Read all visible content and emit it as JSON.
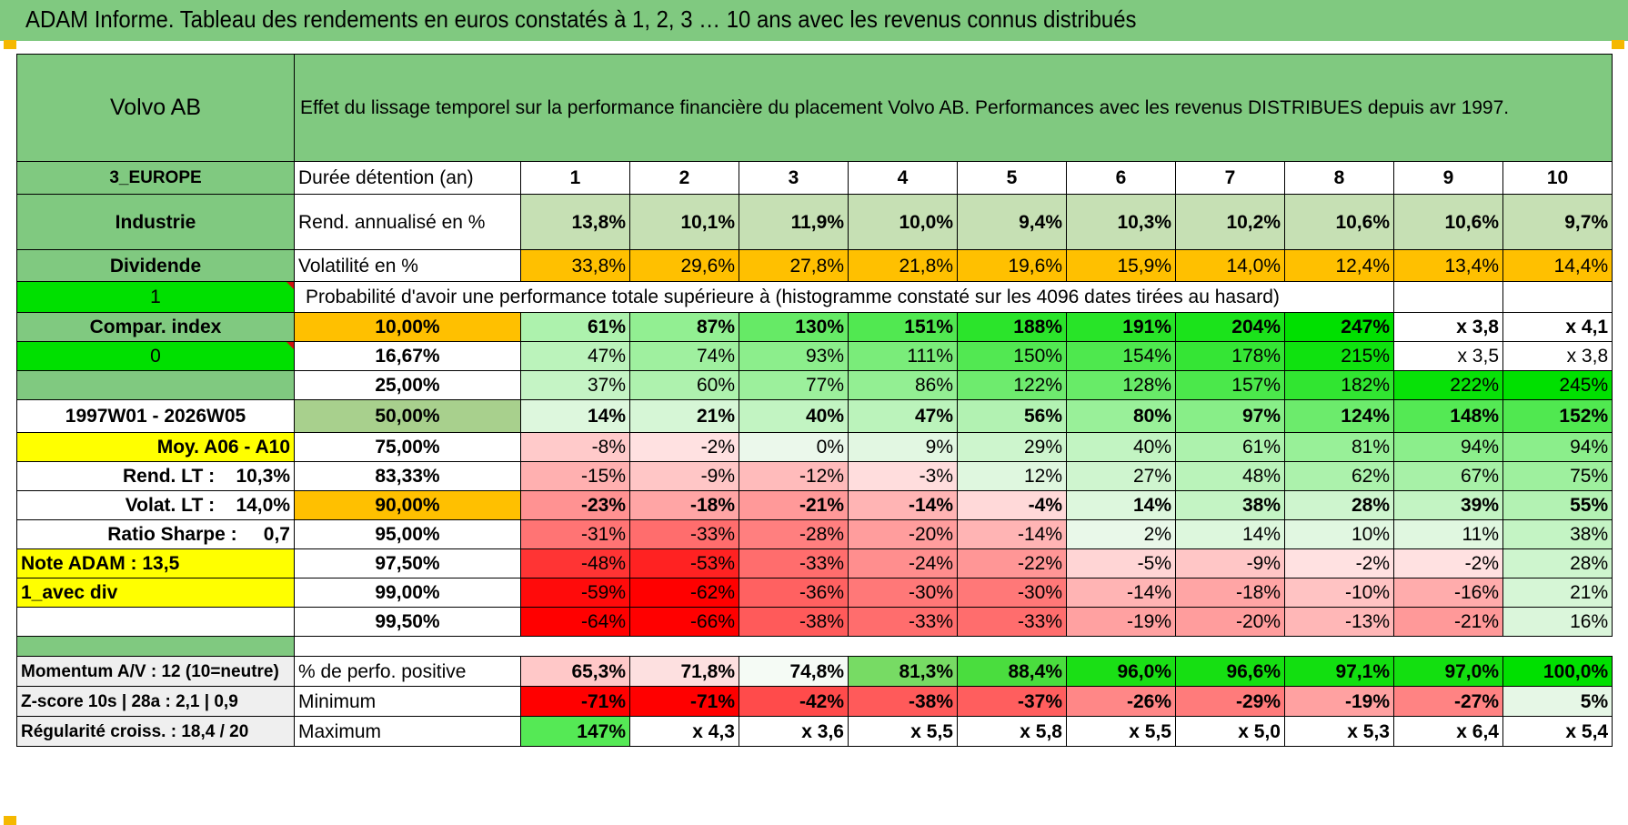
{
  "title": "ADAM Informe. Tableau des rendements en euros constatés à 1, 2, 3 … 10 ans avec les revenus connus distribués",
  "header": {
    "company": "Volvo AB",
    "description": "Effet du lissage temporel sur la performance financière du placement Volvo AB. Performances avec les revenus DISTRIBUES depuis avr 1997."
  },
  "side_labels": {
    "region": "3_EUROPE",
    "sector": "Industrie",
    "payout": "Dividende",
    "flag1": "1",
    "compar_index": "Compar. index",
    "flag0": "0",
    "period": "1997W01 - 2026W05",
    "moy": "Moy. A06 - A10",
    "rend_lt": "Rend. LT :    10,3%",
    "volat_lt": "Volat. LT :    14,0%",
    "sharpe": "Ratio Sharpe :     0,7",
    "note": "Note ADAM : 13,5",
    "variant": "1_avec div"
  },
  "summary": {
    "duration_label": "Durée détention (an)",
    "years": [
      "1",
      "2",
      "3",
      "4",
      "5",
      "6",
      "7",
      "8",
      "9",
      "10"
    ],
    "rend_label": "Rend. annualisé en %",
    "rend": [
      "13,8%",
      "10,1%",
      "11,9%",
      "10,0%",
      "9,4%",
      "10,3%",
      "10,2%",
      "10,6%",
      "10,6%",
      "9,7%"
    ],
    "vol_label": "Volatilité en %",
    "vol": [
      "33,8%",
      "29,6%",
      "27,8%",
      "21,8%",
      "19,6%",
      "15,9%",
      "14,0%",
      "12,4%",
      "13,4%",
      "14,4%"
    ]
  },
  "prob_title": "Probabilité d'avoir une performance totale supérieure à (histogramme constaté sur les 4096 dates tirées au hasard)",
  "prob_rows": [
    {
      "p": "10,00%",
      "v": [
        "61%",
        "87%",
        "130%",
        "151%",
        "188%",
        "191%",
        "204%",
        "247%",
        "x 3,8",
        "x 4,1"
      ]
    },
    {
      "p": "16,67%",
      "v": [
        "47%",
        "74%",
        "93%",
        "111%",
        "150%",
        "154%",
        "178%",
        "215%",
        "x 3,5",
        "x 3,8"
      ]
    },
    {
      "p": "25,00%",
      "v": [
        "37%",
        "60%",
        "77%",
        "86%",
        "122%",
        "128%",
        "157%",
        "182%",
        "222%",
        "245%"
      ]
    },
    {
      "p": "50,00%",
      "v": [
        "14%",
        "21%",
        "40%",
        "47%",
        "56%",
        "80%",
        "97%",
        "124%",
        "148%",
        "152%"
      ]
    },
    {
      "p": "75,00%",
      "v": [
        "-8%",
        "-2%",
        "0%",
        "9%",
        "29%",
        "40%",
        "61%",
        "81%",
        "94%",
        "94%"
      ]
    },
    {
      "p": "83,33%",
      "v": [
        "-15%",
        "-9%",
        "-12%",
        "-3%",
        "12%",
        "27%",
        "48%",
        "62%",
        "67%",
        "75%"
      ]
    },
    {
      "p": "90,00%",
      "v": [
        "-23%",
        "-18%",
        "-21%",
        "-14%",
        "-4%",
        "14%",
        "38%",
        "28%",
        "39%",
        "55%"
      ]
    },
    {
      "p": "95,00%",
      "v": [
        "-31%",
        "-33%",
        "-28%",
        "-20%",
        "-14%",
        "2%",
        "14%",
        "10%",
        "11%",
        "38%"
      ]
    },
    {
      "p": "97,50%",
      "v": [
        "-48%",
        "-53%",
        "-33%",
        "-24%",
        "-22%",
        "-5%",
        "-9%",
        "-2%",
        "-2%",
        "28%"
      ]
    },
    {
      "p": "99,00%",
      "v": [
        "-59%",
        "-62%",
        "-36%",
        "-30%",
        "-30%",
        "-14%",
        "-18%",
        "-10%",
        "-16%",
        "21%"
      ]
    },
    {
      "p": "99,50%",
      "v": [
        "-64%",
        "-66%",
        "-38%",
        "-33%",
        "-33%",
        "-19%",
        "-20%",
        "-13%",
        "-21%",
        "16%"
      ]
    }
  ],
  "bottom_rows": [
    {
      "left": "Momentum A/V : 12 (10=neutre)",
      "label": "% de perfo. positive",
      "v": [
        "65,3%",
        "71,8%",
        "74,8%",
        "81,3%",
        "88,4%",
        "96,0%",
        "96,6%",
        "97,1%",
        "97,0%",
        "100,0%"
      ]
    },
    {
      "left": "Z-score 10s | 28a : 2,1 | 0,9",
      "label": "Minimum",
      "v": [
        "-71%",
        "-71%",
        "-42%",
        "-38%",
        "-37%",
        "-26%",
        "-29%",
        "-19%",
        "-27%",
        "5%"
      ]
    },
    {
      "left": "Régularité croiss. : 18,4 / 20",
      "label": "Maximum",
      "v": [
        "147%",
        "x 4,3",
        "x 3,6",
        "x 5,5",
        "x 5,8",
        "x 5,5",
        "x 5,0",
        "x 5,3",
        "x 6,4",
        "x 5,4"
      ]
    }
  ],
  "colors": {
    "title_bg": "#80c980",
    "label_green": "#80c980",
    "bright_green": "#00e000",
    "yellow": "#ffff00",
    "orange": "#ffc000",
    "positive_scale": "#00e000",
    "negative_scale": "#ff0000"
  }
}
